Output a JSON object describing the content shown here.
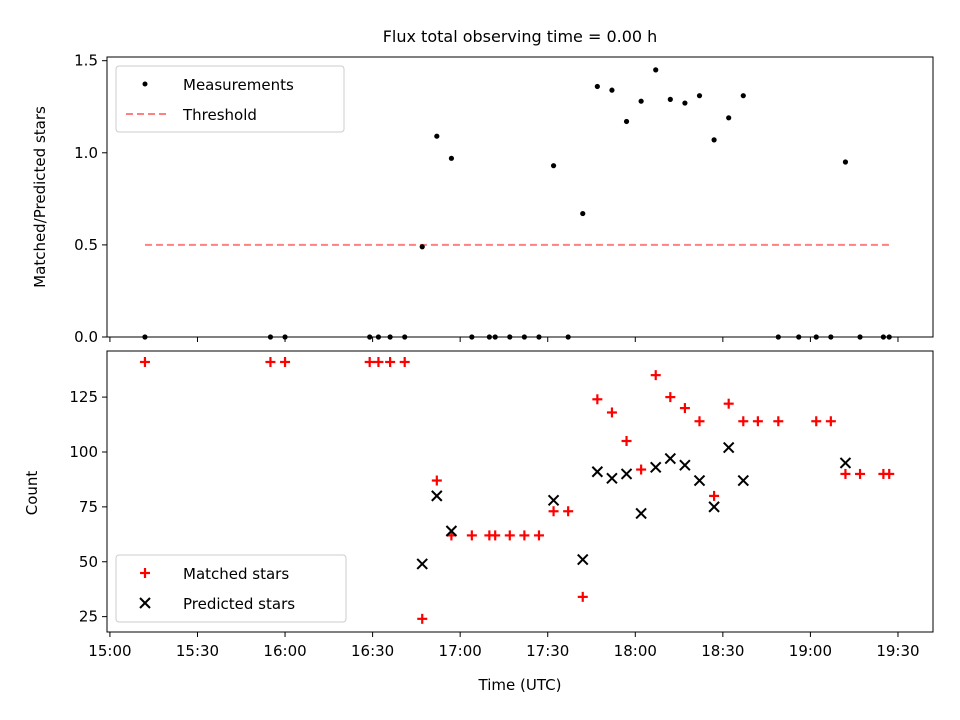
{
  "chart_data": {
    "title": "Flux total observing time = 0.00 h",
    "xlabel": "Time (UTC)",
    "x_ticks": [
      "15:00",
      "15:30",
      "16:00",
      "16:30",
      "17:00",
      "17:30",
      "18:00",
      "18:30",
      "19:00",
      "19:30"
    ],
    "x_range": [
      "14:59",
      "19:42"
    ],
    "top": {
      "type": "scatter",
      "ylabel": "Matched/Predicted stars",
      "ylim": [
        0,
        1.52
      ],
      "y_ticks": [
        "0.0",
        "0.5",
        "1.0",
        "1.5"
      ],
      "legend": {
        "placement": "top-left",
        "measurements": "Measurements",
        "threshold": "Threshold"
      },
      "threshold": {
        "value": 0.5,
        "x_start": "15:12",
        "x_end": "19:28",
        "color": "#ff8080"
      },
      "measurements": {
        "name": "Measurements",
        "color": "#000000",
        "x": [
          "15:12",
          "15:55",
          "16:00",
          "16:29",
          "16:32",
          "16:36",
          "16:41",
          "16:47",
          "16:52",
          "16:57",
          "17:04",
          "17:10",
          "17:12",
          "17:17",
          "17:22",
          "17:27",
          "17:32",
          "17:37",
          "17:42",
          "17:47",
          "17:52",
          "17:57",
          "18:02",
          "18:07",
          "18:12",
          "18:17",
          "18:22",
          "18:27",
          "18:32",
          "18:37",
          "18:49",
          "18:56",
          "19:02",
          "19:07",
          "19:12",
          "19:17",
          "19:25",
          "19:27"
        ],
        "y": [
          0,
          0,
          0,
          0,
          0,
          0,
          0,
          0.49,
          1.09,
          0.97,
          0,
          0,
          0,
          0,
          0,
          0,
          0.93,
          0,
          0.67,
          1.36,
          1.34,
          1.17,
          1.28,
          1.45,
          1.29,
          1.27,
          1.31,
          1.07,
          1.19,
          1.31,
          0,
          0,
          0,
          0,
          0.95,
          0,
          0,
          0
        ]
      }
    },
    "bottom": {
      "type": "scatter",
      "ylabel": "Count",
      "ylim": [
        18,
        146
      ],
      "y_ticks": [
        "25",
        "50",
        "75",
        "100",
        "125"
      ],
      "legend": {
        "placement": "bottom-left",
        "matched": "Matched stars",
        "predicted": "Predicted stars"
      },
      "series": [
        {
          "name": "Matched stars",
          "marker": "plus",
          "color": "#ff0000",
          "x": [
            "15:12",
            "15:55",
            "16:00",
            "16:29",
            "16:32",
            "16:36",
            "16:41",
            "16:47",
            "16:52",
            "16:57",
            "17:04",
            "17:10",
            "17:12",
            "17:17",
            "17:22",
            "17:27",
            "17:32",
            "17:37",
            "17:42",
            "17:47",
            "17:52",
            "17:57",
            "18:02",
            "18:07",
            "18:12",
            "18:17",
            "18:22",
            "18:27",
            "18:32",
            "18:37",
            "18:42",
            "18:49",
            "19:02",
            "19:07",
            "19:12",
            "19:17",
            "19:25",
            "19:27"
          ],
          "y": [
            141,
            141,
            141,
            141,
            141,
            141,
            141,
            24,
            87,
            62,
            62,
            62,
            62,
            62,
            62,
            62,
            73,
            73,
            34,
            124,
            118,
            105,
            92,
            135,
            125,
            120,
            114,
            80,
            122,
            114,
            114,
            114,
            114,
            114,
            90,
            90,
            90,
            90
          ]
        },
        {
          "name": "Predicted stars",
          "marker": "x",
          "color": "#000000",
          "x": [
            "16:47",
            "16:52",
            "16:57",
            "17:32",
            "17:42",
            "17:47",
            "17:52",
            "17:57",
            "18:02",
            "18:07",
            "18:12",
            "18:17",
            "18:22",
            "18:27",
            "18:32",
            "18:37",
            "19:12"
          ],
          "y": [
            49,
            80,
            64,
            78,
            51,
            91,
            88,
            90,
            72,
            93,
            97,
            94,
            87,
            75,
            102,
            87,
            95
          ]
        }
      ]
    }
  }
}
